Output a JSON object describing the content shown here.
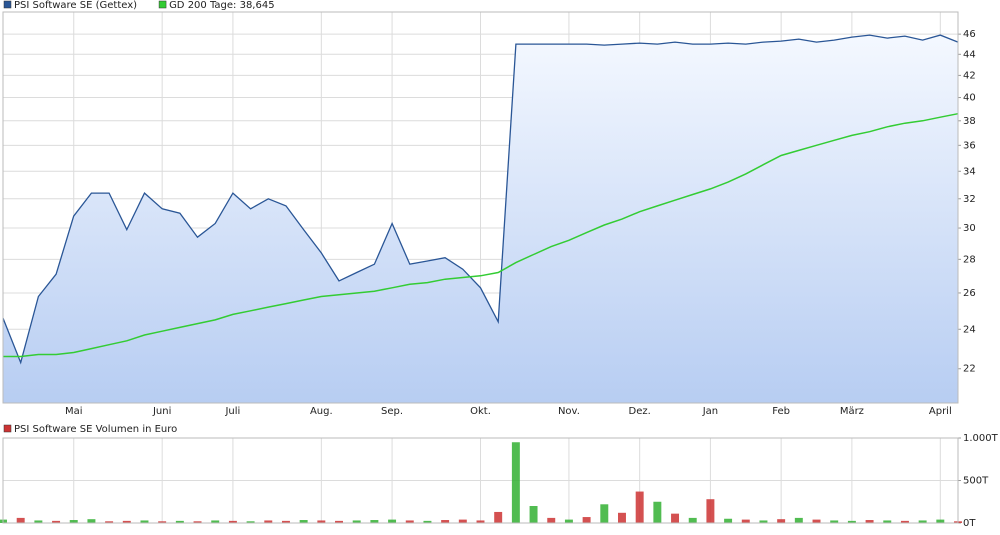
{
  "chart_data": [
    {
      "type": "line",
      "log_scale": true,
      "grid": true,
      "area": true,
      "categories": [
        null,
        null,
        null,
        null,
        "Mai",
        null,
        null,
        null,
        null,
        "Juni",
        null,
        null,
        null,
        "Juli",
        null,
        null,
        null,
        null,
        "Aug.",
        null,
        null,
        null,
        "Sep.",
        null,
        null,
        null,
        null,
        "Okt.",
        null,
        null,
        null,
        null,
        "Nov.",
        null,
        null,
        null,
        "Dez.",
        null,
        null,
        null,
        "Jan",
        null,
        null,
        null,
        "Feb",
        null,
        null,
        null,
        "März",
        null,
        null,
        null,
        null,
        "April",
        null
      ],
      "series": [
        {
          "name": "PSI Software SE (Gettex)",
          "color": "#2a5696",
          "values": [
            24.6,
            22.3,
            25.8,
            27.1,
            30.8,
            32.4,
            32.4,
            29.9,
            32.4,
            31.3,
            31.0,
            29.4,
            30.3,
            32.4,
            31.3,
            32.0,
            31.5,
            29.9,
            28.4,
            26.7,
            27.2,
            27.7,
            30.3,
            27.7,
            27.9,
            28.1,
            27.4,
            26.3,
            24.4,
            45.0,
            45.0,
            45.0,
            45.0,
            45.0,
            44.9,
            45.0,
            45.1,
            45.0,
            45.2,
            45.0,
            45.0,
            45.1,
            45.0,
            45.2,
            45.3,
            45.5,
            45.2,
            45.4,
            45.7,
            45.9,
            45.6,
            45.8,
            45.4,
            45.9,
            45.2
          ]
        },
        {
          "name": "GD 200 Tage: 38,645",
          "color": "#33cc33",
          "values": [
            22.6,
            22.6,
            22.7,
            22.7,
            22.8,
            23.0,
            23.2,
            23.4,
            23.7,
            23.9,
            24.1,
            24.3,
            24.5,
            24.8,
            25.0,
            25.2,
            25.4,
            25.6,
            25.8,
            25.9,
            26.0,
            26.1,
            26.3,
            26.5,
            26.6,
            26.8,
            26.9,
            27.0,
            27.2,
            27.8,
            28.3,
            28.8,
            29.2,
            29.7,
            30.2,
            30.6,
            31.1,
            31.5,
            31.9,
            32.3,
            32.7,
            33.2,
            33.8,
            34.5,
            35.2,
            35.6,
            36.0,
            36.4,
            36.8,
            37.1,
            37.5,
            37.8,
            38.0,
            38.3,
            38.6
          ]
        }
      ],
      "ylim": [
        20.4,
        48.3
      ],
      "yticks": [
        22,
        24,
        26,
        28,
        30,
        32,
        34,
        36,
        38,
        40,
        42,
        44,
        46
      ]
    },
    {
      "type": "bar",
      "grid": true,
      "series": [
        {
          "name": "PSI Software SE Volumen in Euro",
          "color": "#cc3333",
          "values": [
            40000,
            60000,
            30000,
            25000,
            35000,
            45000,
            20000,
            25000,
            30000,
            20000,
            25000,
            20000,
            30000,
            25000,
            20000,
            30000,
            25000,
            35000,
            30000,
            25000,
            30000,
            35000,
            40000,
            30000,
            25000,
            35000,
            40000,
            30000,
            130000,
            950000,
            200000,
            60000,
            40000,
            70000,
            220000,
            120000,
            370000,
            250000,
            110000,
            60000,
            280000,
            50000,
            40000,
            30000,
            45000,
            60000,
            40000,
            30000,
            25000,
            35000,
            30000,
            25000,
            30000,
            40000,
            20000
          ],
          "colors": [
            "#33b033",
            "#cc3333",
            "#33b033",
            "#cc3333",
            "#33b033",
            "#33b033",
            "#cc3333",
            "#cc3333",
            "#33b033",
            "#cc3333",
            "#33b033",
            "#cc3333",
            "#33b033",
            "#cc3333",
            "#33b033",
            "#cc3333",
            "#cc3333",
            "#33b033",
            "#cc3333",
            "#cc3333",
            "#33b033",
            "#33b033",
            "#33b033",
            "#cc3333",
            "#33b033",
            "#cc3333",
            "#cc3333",
            "#cc3333",
            "#cc3333",
            "#33b033",
            "#33b033",
            "#cc3333",
            "#33b033",
            "#cc3333",
            "#33b033",
            "#cc3333",
            "#cc3333",
            "#33b033",
            "#cc3333",
            "#33b033",
            "#cc3333",
            "#33b033",
            "#cc3333",
            "#33b033",
            "#cc3333",
            "#33b033",
            "#cc3333",
            "#33b033",
            "#33b033",
            "#cc3333",
            "#33b033",
            "#cc3333",
            "#33b033",
            "#33b033",
            "#cc3333"
          ]
        }
      ],
      "ylim": [
        0,
        1000000
      ],
      "yticks": [
        {
          "value": 0,
          "label": "0T"
        },
        {
          "value": 500000,
          "label": "500T"
        },
        {
          "value": 1000000,
          "label": "1.000T"
        }
      ]
    }
  ]
}
